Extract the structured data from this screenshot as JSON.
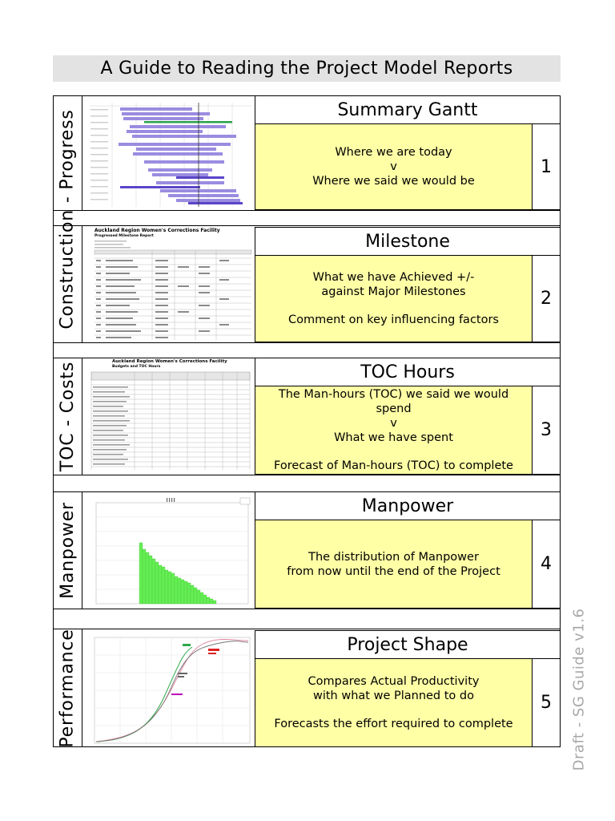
{
  "title": "A Guide to Reading the Project Model Reports",
  "side_labels": {
    "construction": "Construction - Progress",
    "costs": "TOC - Costs",
    "manpower": "Manpower",
    "performance": "Performance"
  },
  "sections": [
    {
      "heading": "Summary Gantt",
      "number": "1",
      "lines": [
        "Where we are today",
        "v",
        "Where we said we would be"
      ]
    },
    {
      "heading": "Milestone",
      "number": "2",
      "lines": [
        "What we have Achieved +/-",
        "against Major Milestones",
        "",
        "Comment on key influencing factors"
      ]
    },
    {
      "heading": "TOC Hours",
      "number": "3",
      "lines": [
        "The Man-hours (TOC) we said we would",
        "spend",
        "v",
        "What we have spent",
        "",
        "Forecast of Man-hours (TOC) to complete"
      ]
    },
    {
      "heading": "Manpower",
      "number": "4",
      "lines": [
        "The distribution of Manpower",
        "from now until the end of the Project"
      ]
    },
    {
      "heading": "Project Shape",
      "number": "5",
      "lines": [
        "Compares Actual Productivity",
        "with what we Planned to do",
        "",
        "Forecasts the effort required to complete"
      ]
    }
  ],
  "thumbnails": {
    "milestone_title": "Auckland Region Women's Corrections Facility",
    "milestone_subtitle": "Progressed Milestone Report",
    "toc_title": "Auckland Region Women's Corrections Facility",
    "toc_subtitle": "Budgets and TOC Hours"
  },
  "watermark": "Draft - SG Guide v1.6",
  "colors": {
    "title_bar": "#e3e3e3",
    "description_fill": "#ffffa6",
    "gantt_bar": "#9b8ce0",
    "manpower_bar": "#66ee55",
    "watermark": "#a8a8a8"
  }
}
